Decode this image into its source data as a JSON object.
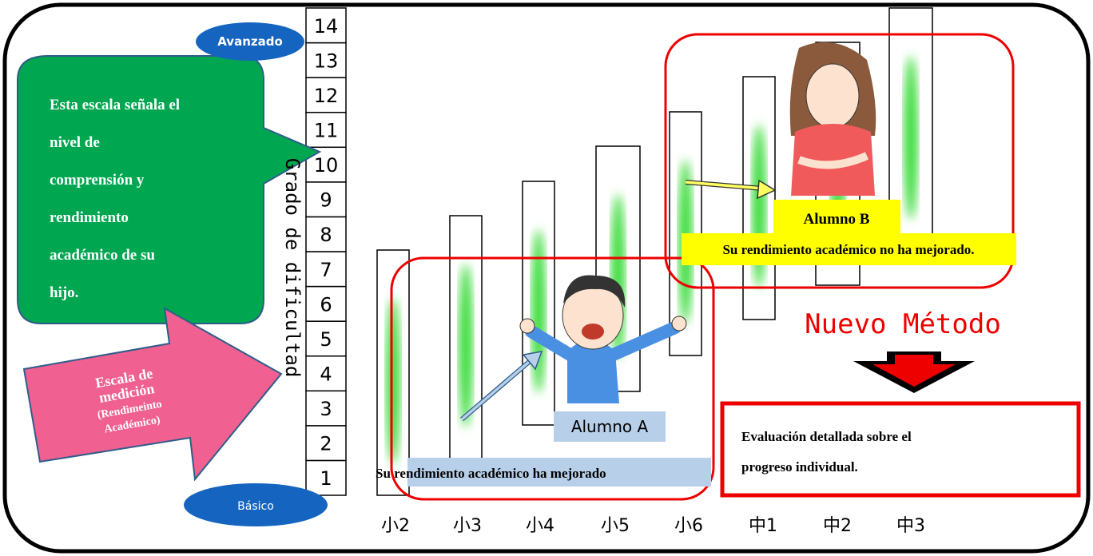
{
  "scale": {
    "top_label": "Avanzado",
    "bottom_label": "Básico",
    "axis_label": "Grado de dificultad",
    "levels": [
      1,
      2,
      3,
      4,
      5,
      6,
      7,
      8,
      9,
      10,
      11,
      12,
      13,
      14
    ]
  },
  "grades": [
    "小2",
    "小3",
    "小4",
    "小5",
    "小6",
    "中1",
    "中2",
    "中3"
  ],
  "callout": {
    "lines": [
      "Esta escala señala el",
      "nivel de",
      "comprensión y",
      "rendimiento",
      "académico de su",
      "hijo."
    ]
  },
  "pointer_arrow": {
    "lines": [
      "Escala de",
      "medición",
      "(Rendimeinto",
      "Académico)"
    ]
  },
  "student_a": {
    "name": "Alumno A",
    "note": "Su rendimiento académico ha mejorado"
  },
  "student_b": {
    "name": "Alumno B",
    "note": "Su rendimiento académico no ha mejorado."
  },
  "method": {
    "title": "Nuevo Método",
    "text_lines": [
      "Evaluación detallada sobre el",
      "progreso individual."
    ]
  }
}
